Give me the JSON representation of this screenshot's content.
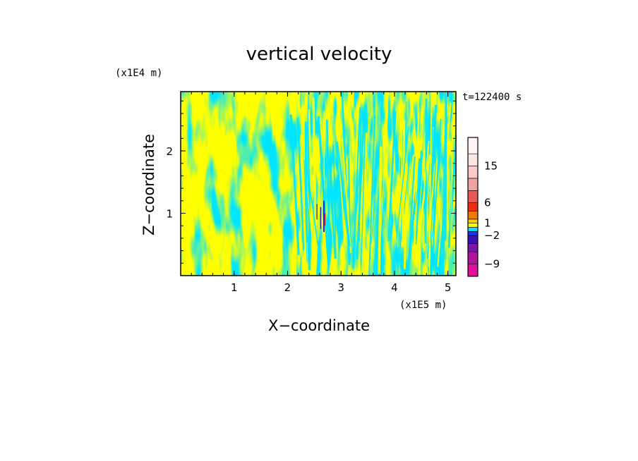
{
  "chart_data": {
    "type": "heatmap",
    "title": "vertical velocity",
    "xlabel": "X−coordinate",
    "ylabel": "Z−coordinate",
    "x_unit": "(x1E5 m)",
    "y_unit": "(x1E4 m)",
    "time_label": "t=122400 s",
    "xlim": [
      0,
      5.15
    ],
    "ylim": [
      0,
      2.95
    ],
    "x_ticks": [
      1,
      2,
      3,
      4,
      5
    ],
    "x_tick_labels": [
      "1",
      "2",
      "3",
      "4",
      "5"
    ],
    "y_ticks": [
      1,
      2
    ],
    "y_tick_labels": [
      "1",
      "2"
    ],
    "colorbar": {
      "levels": [
        -12,
        -9,
        -6,
        -4,
        -2,
        -1,
        0,
        1,
        2,
        4,
        6,
        9,
        12,
        15,
        18,
        22
      ],
      "colors": [
        "#e0109a",
        "#b0139e",
        "#7a16a6",
        "#3a10b4",
        "#1a33ff",
        "#00e5ff",
        "#ffff00",
        "#f5d000",
        "#f07a00",
        "#e83010",
        "#e85a5a",
        "#f2a2a2",
        "#f8caca",
        "#fde6e6",
        "#fff3f3"
      ],
      "tick_labels": [
        "15",
        "6",
        "1",
        "−2",
        "−9"
      ],
      "tick_values": [
        15,
        6,
        1,
        -2,
        -9
      ]
    },
    "field_colors": {
      "positive": "#ffff00",
      "negative": "#00e5ff",
      "strong_negative": "#1a22c8",
      "strong_positive": "#e02020"
    }
  }
}
